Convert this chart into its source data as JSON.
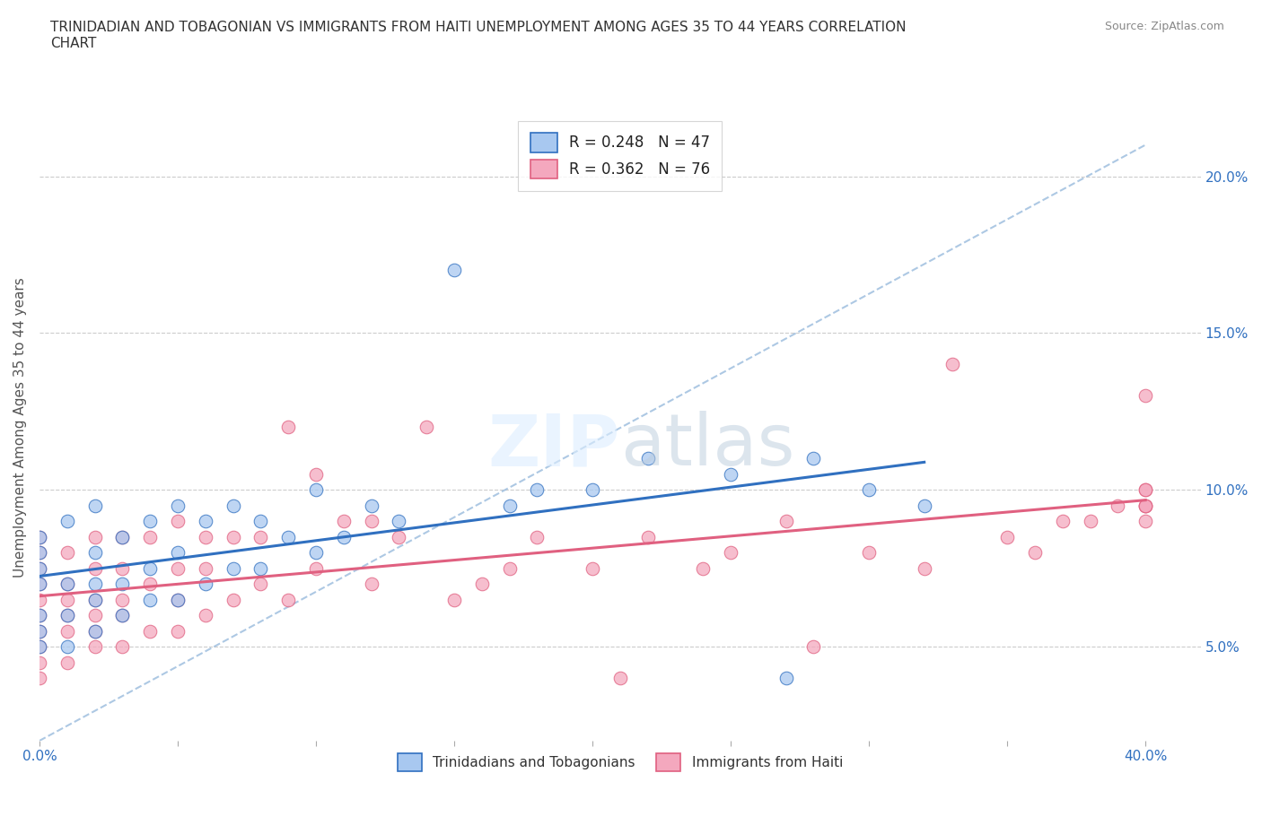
{
  "title": "TRINIDADIAN AND TOBAGONIAN VS IMMIGRANTS FROM HAITI UNEMPLOYMENT AMONG AGES 35 TO 44 YEARS CORRELATION\nCHART",
  "source": "Source: ZipAtlas.com",
  "ylabel": "Unemployment Among Ages 35 to 44 years",
  "xlim": [
    0.0,
    0.42
  ],
  "ylim": [
    0.02,
    0.22
  ],
  "yticks_right": [
    0.05,
    0.1,
    0.15,
    0.2
  ],
  "ytick_labels_right": [
    "5.0%",
    "10.0%",
    "15.0%",
    "20.0%"
  ],
  "xtick_positions": [
    0.0,
    0.05,
    0.1,
    0.15,
    0.2,
    0.25,
    0.3,
    0.35,
    0.4
  ],
  "R_blue": 0.248,
  "N_blue": 47,
  "R_pink": 0.362,
  "N_pink": 76,
  "color_blue": "#A8C8F0",
  "color_pink": "#F4A8BE",
  "line_blue": "#3070C0",
  "line_pink": "#E06080",
  "legend_label_blue": "Trinidadians and Tobagonians",
  "legend_label_pink": "Immigrants from Haiti",
  "blue_x": [
    0.0,
    0.0,
    0.0,
    0.0,
    0.0,
    0.0,
    0.0,
    0.01,
    0.01,
    0.01,
    0.01,
    0.02,
    0.02,
    0.02,
    0.02,
    0.02,
    0.03,
    0.03,
    0.03,
    0.04,
    0.04,
    0.04,
    0.05,
    0.05,
    0.05,
    0.06,
    0.06,
    0.07,
    0.07,
    0.08,
    0.08,
    0.09,
    0.1,
    0.1,
    0.11,
    0.12,
    0.13,
    0.15,
    0.17,
    0.18,
    0.2,
    0.22,
    0.25,
    0.27,
    0.28,
    0.3,
    0.32
  ],
  "blue_y": [
    0.05,
    0.055,
    0.06,
    0.07,
    0.075,
    0.08,
    0.085,
    0.05,
    0.06,
    0.07,
    0.09,
    0.055,
    0.065,
    0.07,
    0.08,
    0.095,
    0.06,
    0.07,
    0.085,
    0.065,
    0.075,
    0.09,
    0.065,
    0.08,
    0.095,
    0.07,
    0.09,
    0.075,
    0.095,
    0.075,
    0.09,
    0.085,
    0.08,
    0.1,
    0.085,
    0.095,
    0.09,
    0.17,
    0.095,
    0.1,
    0.1,
    0.11,
    0.105,
    0.04,
    0.11,
    0.1,
    0.095
  ],
  "pink_x": [
    0.0,
    0.0,
    0.0,
    0.0,
    0.0,
    0.0,
    0.0,
    0.0,
    0.0,
    0.0,
    0.01,
    0.01,
    0.01,
    0.01,
    0.01,
    0.01,
    0.02,
    0.02,
    0.02,
    0.02,
    0.02,
    0.02,
    0.03,
    0.03,
    0.03,
    0.03,
    0.03,
    0.04,
    0.04,
    0.04,
    0.05,
    0.05,
    0.05,
    0.05,
    0.06,
    0.06,
    0.06,
    0.07,
    0.07,
    0.08,
    0.08,
    0.09,
    0.09,
    0.1,
    0.1,
    0.11,
    0.12,
    0.12,
    0.13,
    0.14,
    0.15,
    0.16,
    0.17,
    0.18,
    0.2,
    0.21,
    0.22,
    0.24,
    0.25,
    0.27,
    0.28,
    0.3,
    0.32,
    0.33,
    0.35,
    0.36,
    0.37,
    0.38,
    0.39,
    0.4,
    0.4,
    0.4,
    0.4,
    0.4,
    0.4,
    0.4
  ],
  "pink_y": [
    0.04,
    0.045,
    0.05,
    0.055,
    0.06,
    0.065,
    0.07,
    0.075,
    0.08,
    0.085,
    0.045,
    0.055,
    0.06,
    0.065,
    0.07,
    0.08,
    0.05,
    0.055,
    0.06,
    0.065,
    0.075,
    0.085,
    0.05,
    0.06,
    0.065,
    0.075,
    0.085,
    0.055,
    0.07,
    0.085,
    0.055,
    0.065,
    0.075,
    0.09,
    0.06,
    0.075,
    0.085,
    0.065,
    0.085,
    0.07,
    0.085,
    0.065,
    0.12,
    0.075,
    0.105,
    0.09,
    0.07,
    0.09,
    0.085,
    0.12,
    0.065,
    0.07,
    0.075,
    0.085,
    0.075,
    0.04,
    0.085,
    0.075,
    0.08,
    0.09,
    0.05,
    0.08,
    0.075,
    0.14,
    0.085,
    0.08,
    0.09,
    0.09,
    0.095,
    0.1,
    0.09,
    0.095,
    0.095,
    0.1,
    0.13,
    0.095
  ]
}
